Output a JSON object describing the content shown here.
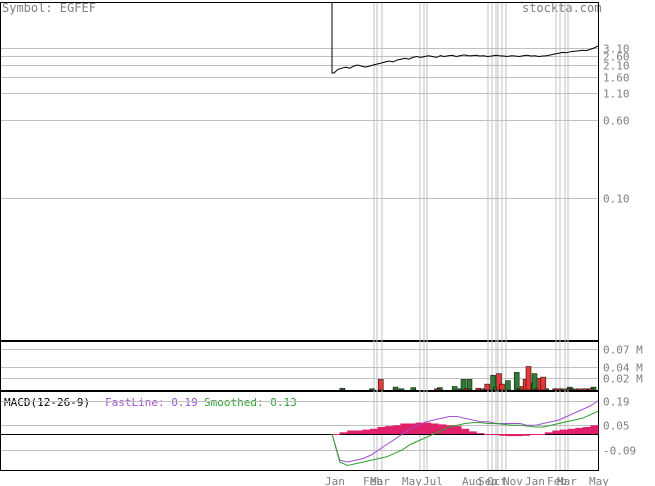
{
  "header": {
    "symbol_label": "Symbol: EGFEF",
    "brand": "stockta.com"
  },
  "colors": {
    "price_line": "#000000",
    "volume_up": "#2e7d32",
    "volume_down": "#e53935",
    "macd_fast": "#a050d0",
    "macd_smoothed": "#2ea02e",
    "macd_hist": "#e0206a",
    "grid": "#c0c0c0",
    "axis_text": "#808080"
  },
  "chart_data": [
    {
      "type": "line",
      "panel": "price",
      "scale": "log",
      "y_ticks": [
        {
          "label": "3.10",
          "value": 3.1
        },
        {
          "label": "2.60",
          "value": 2.6
        },
        {
          "label": "2.10",
          "value": 2.1
        },
        {
          "label": "1.60",
          "value": 1.6
        },
        {
          "label": "1.10",
          "value": 1.1
        },
        {
          "label": "0.60",
          "value": 0.6
        },
        {
          "label": "0.10",
          "value": 0.1
        }
      ],
      "x_labels": [
        "Jan",
        "Feb",
        "Mar",
        "May",
        "Jul",
        "Aug",
        "Sep",
        "Oct",
        "Nov",
        "Jan",
        "Feb",
        "Mar",
        "May"
      ],
      "series": [
        {
          "values": [
            1.75,
            1.9,
            1.95,
            2.0,
            1.95,
            2.05,
            2.1,
            2.05,
            2.0,
            2.05,
            2.1,
            2.15,
            2.2,
            2.25,
            2.3,
            2.25,
            2.35,
            2.4,
            2.45,
            2.4,
            2.5,
            2.55,
            2.5,
            2.55,
            2.6,
            2.55,
            2.5,
            2.6,
            2.55,
            2.6,
            2.62,
            2.55,
            2.6,
            2.65,
            2.6,
            2.6,
            2.62,
            2.58,
            2.6,
            2.55,
            2.58,
            2.62,
            2.6,
            2.58,
            2.55,
            2.6,
            2.58,
            2.55,
            2.6,
            2.62,
            2.58,
            2.6,
            2.55,
            2.58,
            2.6,
            2.65,
            2.7,
            2.75,
            2.8,
            2.78,
            2.85,
            2.88,
            2.9,
            2.95,
            2.92,
            3.0,
            3.1,
            3.25
          ]
        }
      ]
    },
    {
      "type": "bar",
      "panel": "volume",
      "y_ticks": [
        {
          "label": "0.07 M",
          "value": 0.07
        },
        {
          "label": "0.04 M",
          "value": 0.04
        },
        {
          "label": "0.02 M",
          "value": 0.02
        }
      ],
      "series": [
        {
          "direction": "up",
          "points": [
            [
              2,
              0.003
            ],
            [
              12,
              0.002
            ],
            [
              20,
              0.005
            ],
            [
              22,
              0.002
            ],
            [
              26,
              0.004
            ],
            [
              35,
              0.004
            ],
            [
              40,
              0.006
            ],
            [
              42,
              0.002
            ],
            [
              43,
              0.018
            ],
            [
              45,
              0.018
            ],
            [
              50,
              0.002
            ],
            [
              53,
              0.025
            ],
            [
              54,
              0.005
            ],
            [
              58,
              0.016
            ],
            [
              61,
              0.03
            ],
            [
              62,
              0.002
            ],
            [
              66,
              0.012
            ],
            [
              67,
              0.028
            ],
            [
              71,
              0.002
            ],
            [
              76,
              0.002
            ],
            [
              79,
              0.005
            ],
            [
              80,
              0.002
            ],
            [
              85,
              0.002
            ],
            [
              87,
              0.005
            ]
          ]
        },
        {
          "direction": "down",
          "points": [
            [
              15,
              0.018
            ],
            [
              34,
              0.002
            ],
            [
              44,
              0.002
            ],
            [
              48,
              0.003
            ],
            [
              51,
              0.01
            ],
            [
              55,
              0.028
            ],
            [
              56,
              0.01
            ],
            [
              63,
              0.006
            ],
            [
              64,
              0.018
            ],
            [
              65,
              0.04
            ],
            [
              68,
              0.002
            ],
            [
              69,
              0.02
            ],
            [
              70,
              0.022
            ],
            [
              74,
              0.002
            ],
            [
              75,
              0.002
            ],
            [
              78,
              0.002
            ],
            [
              82,
              0.002
            ],
            [
              84,
              0.002
            ],
            [
              86,
              0.002
            ]
          ]
        }
      ]
    },
    {
      "type": "line",
      "panel": "macd",
      "title": "MACD(12-26-9)",
      "fast_label": "FastLine: 0.19",
      "smoothed_label": "Smoothed: 0.13",
      "y_ticks": [
        {
          "label": "0.19",
          "value": 0.19
        },
        {
          "label": "0.05",
          "value": 0.05
        },
        {
          "label": "-0.09",
          "value": -0.09
        }
      ],
      "series": [
        {
          "name": "FastLine",
          "values": [
            0.0,
            -0.15,
            -0.16,
            -0.15,
            -0.14,
            -0.12,
            -0.09,
            -0.06,
            -0.03,
            0.0,
            0.03,
            0.05,
            0.07,
            0.08,
            0.09,
            0.1,
            0.1,
            0.09,
            0.08,
            0.07,
            0.07,
            0.06,
            0.06,
            0.06,
            0.06,
            0.05,
            0.05,
            0.06,
            0.07,
            0.08,
            0.1,
            0.12,
            0.14,
            0.16,
            0.19
          ]
        },
        {
          "name": "Smoothed",
          "values": [
            0.0,
            -0.16,
            -0.18,
            -0.17,
            -0.16,
            -0.15,
            -0.14,
            -0.13,
            -0.11,
            -0.09,
            -0.06,
            -0.04,
            -0.02,
            0.0,
            0.02,
            0.04,
            0.05,
            0.06,
            0.065,
            0.065,
            0.06,
            0.06,
            0.055,
            0.05,
            0.05,
            0.045,
            0.04,
            0.04,
            0.05,
            0.06,
            0.07,
            0.08,
            0.09,
            0.11,
            0.13
          ]
        },
        {
          "name": "Histogram",
          "values": [
            0.0,
            0.01,
            0.02,
            0.02,
            0.025,
            0.03,
            0.04,
            0.045,
            0.05,
            0.06,
            0.06,
            0.065,
            0.065,
            0.06,
            0.055,
            0.05,
            0.045,
            0.03,
            0.015,
            0.005,
            0.0,
            -0.005,
            -0.01,
            -0.012,
            -0.012,
            -0.01,
            -0.005,
            0.0,
            0.01,
            0.02,
            0.025,
            0.03,
            0.035,
            0.04,
            0.05
          ]
        }
      ]
    }
  ]
}
